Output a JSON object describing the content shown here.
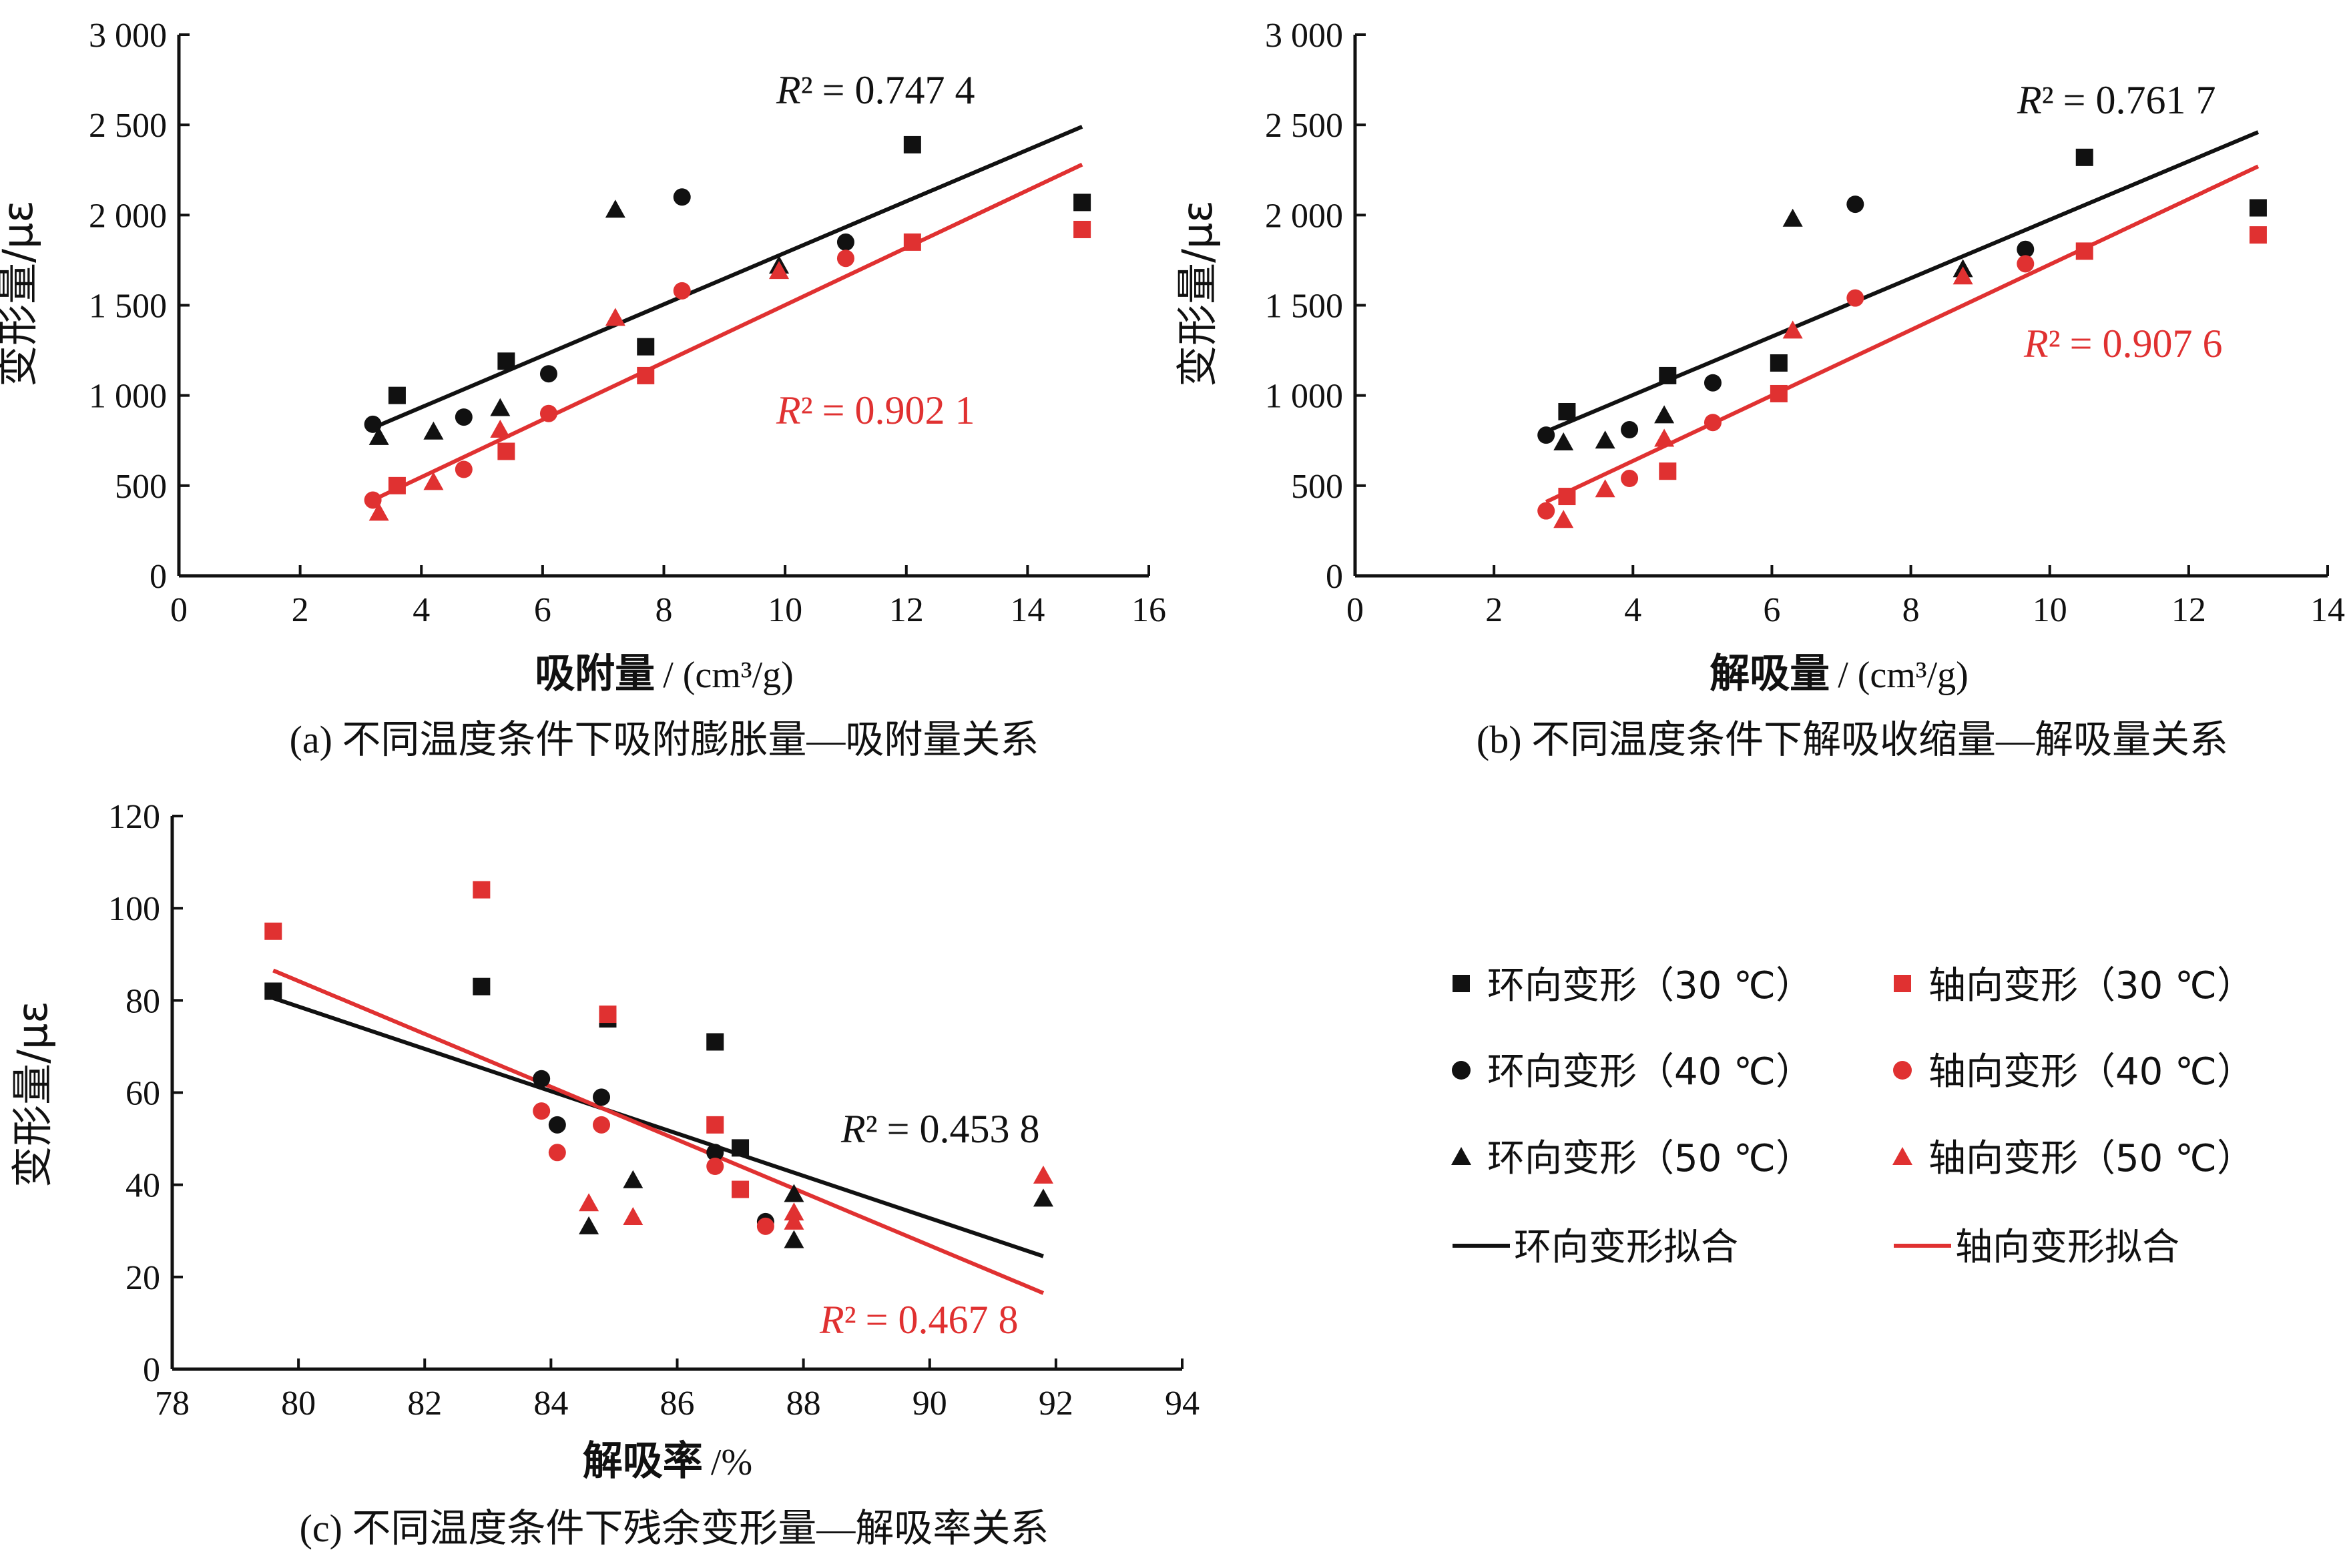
{
  "colors": {
    "circumferential": "#111111",
    "axial": "#e03131"
  },
  "legend": {
    "items": [
      {
        "label": "环向变形（30 ℃）",
        "marker": "square",
        "color": "#111111"
      },
      {
        "label": "轴向变形（30 ℃）",
        "marker": "square",
        "color": "#e03131"
      },
      {
        "label": "环向变形（40 ℃）",
        "marker": "circle",
        "color": "#111111"
      },
      {
        "label": "轴向变形（40 ℃）",
        "marker": "circle",
        "color": "#e03131"
      },
      {
        "label": "环向变形（50 ℃）",
        "marker": "triangle",
        "color": "#111111"
      },
      {
        "label": "轴向变形（50 ℃）",
        "marker": "triangle",
        "color": "#e03131"
      },
      {
        "label": "环向变形拟合",
        "marker": "line",
        "color": "#111111"
      },
      {
        "label": "轴向变形拟合",
        "marker": "line",
        "color": "#e03131"
      }
    ]
  },
  "chart_data": [
    {
      "type": "scatter",
      "caption": "(a) 不同温度条件下吸附膨胀量—吸附量关系",
      "xlabel": "吸附量",
      "xunit": "/ (cm³/g)",
      "ylabel": "变形量/με",
      "xlim": [
        0,
        16
      ],
      "ylim": [
        0,
        3000
      ],
      "xticks": [
        0,
        2,
        4,
        6,
        8,
        10,
        12,
        14,
        16
      ],
      "xtick_labels": [
        "0",
        "2",
        "4",
        "6",
        "8",
        "10",
        "12",
        "14",
        "16"
      ],
      "yticks": [
        0,
        500,
        1000,
        1500,
        2000,
        2500,
        3000
      ],
      "ytick_labels": [
        "0",
        "500",
        "1 000",
        "1 500",
        "2 000",
        "2 500",
        "3 000"
      ],
      "series": [
        {
          "name": "环向变形（30 ℃）",
          "marker": "square",
          "color": "#111111",
          "x": [
            3.6,
            5.4,
            7.7,
            12.1,
            14.9
          ],
          "y": [
            1000,
            1190,
            1270,
            2390,
            2070
          ]
        },
        {
          "name": "轴向变形（30 ℃）",
          "marker": "square",
          "color": "#e03131",
          "x": [
            3.6,
            5.4,
            7.7,
            12.1,
            14.9
          ],
          "y": [
            500,
            690,
            1110,
            1850,
            1920
          ]
        },
        {
          "name": "环向变形（40 ℃）",
          "marker": "circle",
          "color": "#111111",
          "x": [
            3.2,
            4.7,
            6.1,
            8.3,
            11.0
          ],
          "y": [
            840,
            880,
            1120,
            2100,
            1850
          ]
        },
        {
          "name": "轴向变形（40 ℃）",
          "marker": "circle",
          "color": "#e03131",
          "x": [
            3.2,
            4.7,
            6.1,
            8.3,
            11.0
          ],
          "y": [
            420,
            590,
            900,
            1580,
            1760
          ]
        },
        {
          "name": "环向变形（50 ℃）",
          "marker": "triangle",
          "color": "#111111",
          "x": [
            3.3,
            4.2,
            5.3,
            7.2,
            9.9
          ],
          "y": [
            770,
            800,
            930,
            2030,
            1720
          ]
        },
        {
          "name": "轴向变形（50 ℃）",
          "marker": "triangle",
          "color": "#e03131",
          "x": [
            3.3,
            4.2,
            5.3,
            7.2,
            9.9
          ],
          "y": [
            350,
            520,
            810,
            1430,
            1690
          ]
        }
      ],
      "fits": [
        {
          "name": "环向变形拟合",
          "color": "#111111",
          "x": [
            3.2,
            14.9
          ],
          "y": [
            820,
            2490
          ],
          "r2_label": "= 0.747 4"
        },
        {
          "name": "轴向变形拟合",
          "color": "#e03131",
          "x": [
            3.2,
            14.9
          ],
          "y": [
            420,
            2280
          ],
          "r2_label": "= 0.902 1"
        }
      ]
    },
    {
      "type": "scatter",
      "caption": "(b) 不同温度条件下解吸收缩量—解吸量关系",
      "xlabel": "解吸量",
      "xunit": "/ (cm³/g)",
      "ylabel": "变形量/με",
      "xlim": [
        0,
        14
      ],
      "ylim": [
        0,
        3000
      ],
      "xticks": [
        0,
        2,
        4,
        6,
        8,
        10,
        12,
        14
      ],
      "xtick_labels": [
        "0",
        "2",
        "4",
        "6",
        "8",
        "10",
        "12",
        "14"
      ],
      "yticks": [
        0,
        500,
        1000,
        1500,
        2000,
        2500,
        3000
      ],
      "ytick_labels": [
        "0",
        "500",
        "1 000",
        "1 500",
        "2 000",
        "2 500",
        "3 000"
      ],
      "series": [
        {
          "name": "环向变形（30 ℃）",
          "marker": "square",
          "color": "#111111",
          "x": [
            3.05,
            4.5,
            6.1,
            10.5,
            13.0
          ],
          "y": [
            910,
            1110,
            1180,
            2320,
            2040
          ]
        },
        {
          "name": "轴向变形（30 ℃）",
          "marker": "square",
          "color": "#e03131",
          "x": [
            3.05,
            4.5,
            6.1,
            10.5,
            13.0
          ],
          "y": [
            440,
            580,
            1010,
            1800,
            1890
          ]
        },
        {
          "name": "环向变形（40 ℃）",
          "marker": "circle",
          "color": "#111111",
          "x": [
            2.75,
            3.95,
            5.15,
            7.2,
            9.65
          ],
          "y": [
            780,
            810,
            1070,
            2060,
            1810
          ]
        },
        {
          "name": "轴向变形（40 ℃）",
          "marker": "circle",
          "color": "#e03131",
          "x": [
            2.75,
            3.95,
            5.15,
            7.2,
            9.65
          ],
          "y": [
            360,
            540,
            850,
            1540,
            1730
          ]
        },
        {
          "name": "环向变形（50 ℃）",
          "marker": "triangle",
          "color": "#111111",
          "x": [
            3.0,
            3.6,
            4.45,
            6.3,
            8.75
          ],
          "y": [
            740,
            750,
            890,
            1980,
            1700
          ]
        },
        {
          "name": "轴向变形（50 ℃）",
          "marker": "triangle",
          "color": "#e03131",
          "x": [
            3.0,
            3.6,
            4.45,
            6.3,
            8.75
          ],
          "y": [
            310,
            480,
            760,
            1360,
            1660
          ]
        }
      ],
      "fits": [
        {
          "name": "环向变形拟合",
          "color": "#111111",
          "x": [
            2.75,
            13.0
          ],
          "y": [
            800,
            2460
          ],
          "r2_label": "= 0.761 7"
        },
        {
          "name": "轴向变形拟合",
          "color": "#e03131",
          "x": [
            2.75,
            13.0
          ],
          "y": [
            410,
            2270
          ],
          "r2_label": "= 0.907 6"
        }
      ]
    },
    {
      "type": "scatter",
      "caption": "(c) 不同温度条件下残余变形量—解吸率关系",
      "xlabel": "解吸率",
      "xunit": "/%",
      "ylabel": "变形量/με",
      "xlim": [
        78,
        94
      ],
      "ylim": [
        0,
        120
      ],
      "xticks": [
        78,
        80,
        82,
        84,
        86,
        88,
        90,
        92,
        94
      ],
      "xtick_labels": [
        "78",
        "80",
        "82",
        "84",
        "86",
        "88",
        "90",
        "92",
        "94"
      ],
      "yticks": [
        0,
        20,
        40,
        60,
        80,
        100,
        120
      ],
      "ytick_labels": [
        "0",
        "20",
        "40",
        "60",
        "80",
        "100",
        "120"
      ],
      "series": [
        {
          "name": "环向变形（30 ℃）",
          "marker": "square",
          "color": "#111111",
          "x": [
            79.6,
            82.9,
            84.9,
            86.6,
            87.0
          ],
          "y": [
            82,
            83,
            76,
            71,
            48
          ]
        },
        {
          "name": "轴向变形（30 ℃）",
          "marker": "square",
          "color": "#e03131",
          "x": [
            79.6,
            82.9,
            84.9,
            86.6,
            87.0
          ],
          "y": [
            95,
            104,
            77,
            53,
            39
          ]
        },
        {
          "name": "环向变形（40 ℃）",
          "marker": "circle",
          "color": "#111111",
          "x": [
            83.85,
            84.1,
            84.8,
            86.6,
            87.4
          ],
          "y": [
            63,
            53,
            59,
            47,
            32
          ]
        },
        {
          "name": "轴向变形（40 ℃）",
          "marker": "circle",
          "color": "#e03131",
          "x": [
            83.85,
            84.1,
            84.8,
            86.6,
            87.4
          ],
          "y": [
            56,
            47,
            53,
            44,
            31
          ]
        },
        {
          "name": "环向变形（50 ℃）",
          "marker": "triangle",
          "color": "#111111",
          "x": [
            84.6,
            85.3,
            87.85,
            87.85,
            91.8
          ],
          "y": [
            31,
            41,
            38,
            28,
            37
          ]
        },
        {
          "name": "轴向变形（50 ℃）",
          "marker": "triangle",
          "color": "#e03131",
          "x": [
            84.6,
            85.3,
            87.85,
            87.85,
            91.8
          ],
          "y": [
            36,
            33,
            34,
            32,
            42
          ]
        }
      ],
      "fits": [
        {
          "name": "环向变形拟合",
          "color": "#111111",
          "x": [
            79.6,
            91.8
          ],
          "y": [
            80.5,
            24.5
          ],
          "r2_label": "= 0.453 8"
        },
        {
          "name": "轴向变形拟合",
          "color": "#e03131",
          "x": [
            79.6,
            91.8
          ],
          "y": [
            86.5,
            16.5
          ],
          "r2_label": "= 0.467 8"
        }
      ]
    }
  ]
}
